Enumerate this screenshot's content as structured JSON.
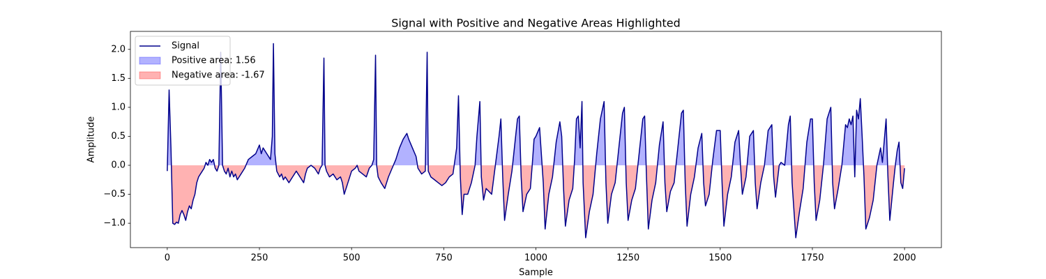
{
  "chart_data": {
    "type": "line",
    "title": "Signal with Positive and Negative Areas Highlighted",
    "xlabel": "Sample",
    "ylabel": "Amplitude",
    "xlim": [
      -100,
      2100
    ],
    "ylim": [
      -1.42,
      2.31
    ],
    "xticks": [
      0,
      250,
      500,
      750,
      1000,
      1250,
      1500,
      1750,
      2000
    ],
    "yticks": [
      {
        "value": -1.0,
        "label": "−1.0"
      },
      {
        "value": -0.5,
        "label": "−0.5"
      },
      {
        "value": 0.0,
        "label": "0.0"
      },
      {
        "value": 0.5,
        "label": "0.5"
      },
      {
        "value": 1.0,
        "label": "1.0"
      },
      {
        "value": 1.5,
        "label": "1.5"
      },
      {
        "value": 2.0,
        "label": "2.0"
      }
    ],
    "legend": "upper left",
    "fills": [
      {
        "name": "Positive area: 1.56",
        "color": "#0000ff",
        "alpha": 0.3
      },
      {
        "name": "Negative area: -1.67",
        "color": "#ff0000",
        "alpha": 0.3
      }
    ],
    "x": [
      0,
      5,
      10,
      15,
      20,
      25,
      30,
      35,
      40,
      45,
      50,
      55,
      60,
      65,
      70,
      75,
      80,
      85,
      90,
      95,
      100,
      105,
      110,
      115,
      120,
      125,
      130,
      135,
      140,
      145,
      150,
      155,
      160,
      165,
      170,
      175,
      180,
      185,
      190,
      200,
      210,
      220,
      230,
      240,
      250,
      255,
      260,
      270,
      280,
      285,
      288,
      292,
      297,
      305,
      310,
      315,
      320,
      330,
      340,
      350,
      360,
      370,
      375,
      380,
      390,
      400,
      410,
      415,
      420,
      425,
      428,
      432,
      440,
      450,
      460,
      470,
      475,
      480,
      490,
      500,
      510,
      515,
      520,
      530,
      540,
      548,
      555,
      560,
      565,
      568,
      572,
      580,
      590,
      600,
      610,
      620,
      630,
      640,
      650,
      655,
      665,
      675,
      680,
      690,
      700,
      705,
      708,
      715,
      725,
      735,
      745,
      755,
      765,
      775,
      785,
      790,
      795,
      800,
      805,
      815,
      825,
      835,
      840,
      848,
      852,
      858,
      865,
      880,
      890,
      900,
      905,
      910,
      915,
      925,
      935,
      940,
      950,
      955,
      960,
      965,
      975,
      985,
      990,
      995,
      1000,
      1010,
      1020,
      1025,
      1035,
      1045,
      1055,
      1065,
      1070,
      1075,
      1080,
      1090,
      1100,
      1105,
      1110,
      1115,
      1120,
      1125,
      1128,
      1135,
      1145,
      1155,
      1165,
      1175,
      1185,
      1190,
      1195,
      1205,
      1215,
      1225,
      1235,
      1240,
      1245,
      1250,
      1260,
      1270,
      1280,
      1290,
      1295,
      1300,
      1305,
      1315,
      1325,
      1335,
      1345,
      1350,
      1355,
      1365,
      1375,
      1385,
      1395,
      1400,
      1405,
      1410,
      1420,
      1430,
      1440,
      1450,
      1455,
      1460,
      1470,
      1480,
      1490,
      1500,
      1505,
      1510,
      1520,
      1530,
      1540,
      1550,
      1555,
      1560,
      1570,
      1580,
      1590,
      1595,
      1600,
      1610,
      1620,
      1630,
      1640,
      1645,
      1650,
      1660,
      1665,
      1675,
      1685,
      1690,
      1695,
      1705,
      1715,
      1725,
      1735,
      1745,
      1750,
      1755,
      1760,
      1770,
      1780,
      1790,
      1800,
      1805,
      1810,
      1820,
      1830,
      1840,
      1845,
      1850,
      1855,
      1860,
      1865,
      1870,
      1875,
      1880,
      1885,
      1890,
      1895,
      1905,
      1915,
      1925,
      1935,
      1940,
      1950,
      1955,
      1960,
      1970,
      1975,
      1980,
      1985,
      1990,
      1995,
      2000
    ],
    "series": [
      {
        "name": "Signal",
        "color": "#00008b",
        "values": [
          -0.1,
          1.3,
          0.3,
          -1.0,
          -1.02,
          -0.98,
          -1.0,
          -0.85,
          -0.78,
          -0.85,
          -0.95,
          -0.8,
          -0.7,
          -0.75,
          -0.6,
          -0.5,
          -0.3,
          -0.2,
          -0.15,
          -0.1,
          -0.05,
          0.05,
          0.0,
          0.1,
          0.05,
          0.1,
          -0.05,
          -0.1,
          0.0,
          1.95,
          0.0,
          -0.1,
          -0.15,
          -0.05,
          -0.2,
          -0.1,
          -0.2,
          -0.15,
          -0.25,
          -0.15,
          -0.05,
          0.1,
          0.15,
          0.2,
          0.35,
          0.2,
          0.3,
          0.2,
          0.1,
          0.5,
          2.1,
          0.2,
          -0.1,
          -0.2,
          -0.15,
          -0.25,
          -0.2,
          -0.3,
          -0.2,
          -0.1,
          -0.2,
          -0.3,
          -0.15,
          -0.05,
          0.0,
          -0.05,
          -0.15,
          -0.05,
          0.0,
          1.85,
          0.0,
          -0.1,
          -0.2,
          -0.15,
          -0.25,
          -0.2,
          -0.3,
          -0.5,
          -0.3,
          -0.1,
          -0.05,
          0.0,
          -0.1,
          -0.15,
          -0.2,
          -0.05,
          0.0,
          0.1,
          1.9,
          0.0,
          -0.2,
          -0.3,
          -0.4,
          -0.2,
          -0.05,
          0.1,
          0.3,
          0.45,
          0.55,
          0.45,
          0.3,
          0.15,
          -0.05,
          -0.15,
          -0.1,
          1.95,
          -0.1,
          -0.2,
          -0.25,
          -0.3,
          -0.35,
          -0.3,
          -0.2,
          -0.15,
          0.3,
          1.2,
          -0.2,
          -0.85,
          -0.5,
          -0.5,
          -0.3,
          0.0,
          0.5,
          1.1,
          -0.2,
          -0.6,
          -0.4,
          -0.5,
          0.0,
          0.5,
          0.8,
          -0.2,
          -0.95,
          -0.5,
          -0.1,
          0.2,
          0.8,
          0.85,
          -0.2,
          -0.8,
          -0.5,
          -0.4,
          0.0,
          0.45,
          0.5,
          0.65,
          -0.3,
          -1.1,
          -0.5,
          -0.2,
          0.4,
          0.75,
          0.5,
          -0.4,
          -1.05,
          -0.6,
          -0.4,
          0.1,
          0.8,
          0.85,
          0.3,
          1.1,
          -0.3,
          -1.25,
          -0.8,
          -0.5,
          0.2,
          0.8,
          1.1,
          -0.3,
          -1.0,
          -0.5,
          -0.3,
          0.3,
          0.9,
          1.0,
          -0.3,
          -0.95,
          -0.6,
          -0.4,
          0.2,
          0.8,
          0.85,
          -0.2,
          -1.1,
          -0.6,
          -0.3,
          0.35,
          0.75,
          -0.3,
          -0.8,
          -0.45,
          -0.3,
          0.3,
          0.9,
          0.95,
          -0.3,
          -1.05,
          -0.5,
          -0.2,
          0.3,
          0.55,
          -0.3,
          -0.7,
          -0.5,
          0.1,
          0.6,
          0.6,
          -0.3,
          -1.05,
          -0.5,
          -0.2,
          0.4,
          0.6,
          0.0,
          -0.5,
          -0.2,
          0.5,
          0.6,
          -0.3,
          -0.75,
          -0.3,
          0.0,
          0.6,
          0.7,
          -0.2,
          -0.55,
          0.0,
          0.05,
          0.0,
          0.7,
          0.85,
          -0.3,
          -1.25,
          -0.8,
          -0.4,
          0.4,
          0.8,
          0.8,
          -0.3,
          -0.95,
          -0.6,
          0.0,
          0.8,
          1.0,
          -0.3,
          -0.75,
          -0.4,
          0.0,
          0.7,
          0.65,
          0.8,
          0.7,
          0.85,
          -0.2,
          0.95,
          0.8,
          1.15,
          0.5,
          -0.2,
          -1.1,
          -0.9,
          -0.6,
          0.0,
          0.3,
          0.05,
          0.8,
          -0.2,
          -0.95,
          -0.3,
          0.0,
          0.25,
          0.4,
          -0.3,
          -0.4,
          -0.05
        ]
      }
    ]
  }
}
